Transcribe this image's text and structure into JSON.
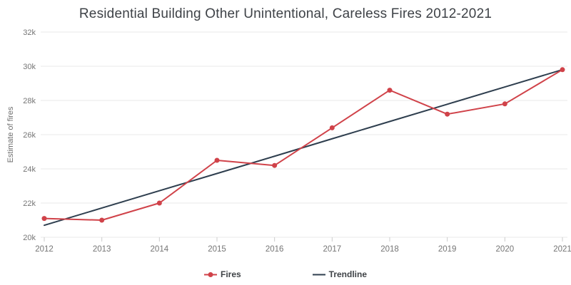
{
  "page": {
    "background": "#ffffff"
  },
  "chart_data": {
    "type": "line",
    "title": "Residential Building Other Unintentional, Careless Fires 2012-2021",
    "xlabel": "",
    "ylabel": "Estimate of fires",
    "categories": [
      "2012",
      "2013",
      "2014",
      "2015",
      "2016",
      "2017",
      "2018",
      "2019",
      "2020",
      "2021"
    ],
    "series": [
      {
        "name": "Fires",
        "color": "#d04249",
        "marker": "circle",
        "values": [
          21100,
          21000,
          22000,
          24500,
          24200,
          26400,
          28600,
          27200,
          27800,
          29800
        ]
      },
      {
        "name": "Trendline",
        "color": "#2e3e4e",
        "marker": "none",
        "values": [
          20700,
          21710,
          22720,
          23730,
          24740,
          25760,
          26770,
          27780,
          28790,
          29800
        ]
      }
    ],
    "ylim": [
      20000,
      32000
    ],
    "y_tick_step": 2000,
    "y_tick_labels": [
      "20k",
      "22k",
      "24k",
      "26k",
      "28k",
      "30k",
      "32k"
    ],
    "grid": true,
    "legend_position": "bottom",
    "colors": {
      "axis_text": "#757575",
      "grid_line": "#e8e8e8",
      "tick_mark": "#cccccc",
      "title_text": "#3e4247"
    }
  }
}
